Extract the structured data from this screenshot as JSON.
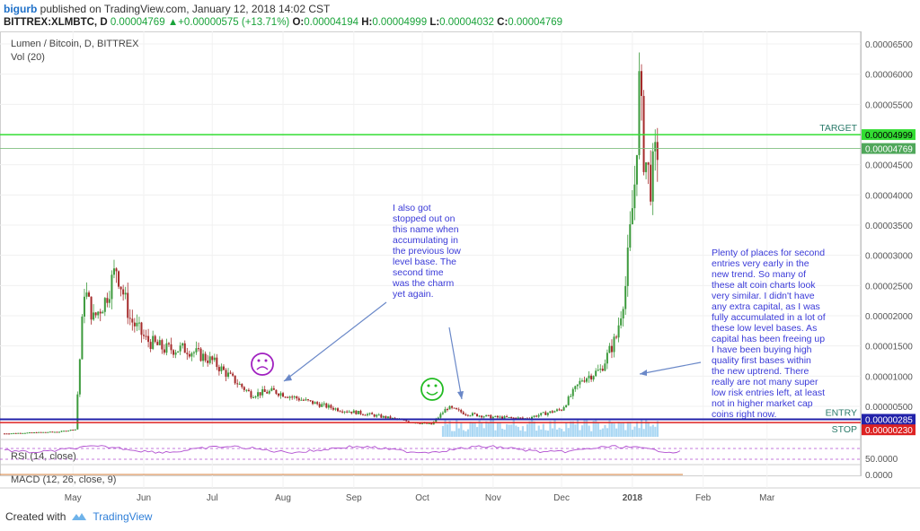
{
  "header": {
    "user": "bigurb",
    "published": "published on TradingView.com, January 12, 2018 14:02 CST",
    "symbol": "BITTREX:XLMBTC, D",
    "last": "0.00004769",
    "change_arrow": "▲",
    "change": "+0.00000575 (+13.71%)",
    "o_label": "O:",
    "o": "0.00004194",
    "h_label": "H:",
    "h": "0.00004999",
    "l_label": "L:",
    "l": "0.00004032",
    "c_label": "C:",
    "c": "0.00004769"
  },
  "footer": {
    "created_with": "Created with",
    "brand": "TradingView",
    "logo_icon": "tradingview-logo-icon"
  },
  "colors": {
    "up": "#3c9a3c",
    "down": "#a52a2a",
    "target": "#33dd33",
    "entry": "#2222aa",
    "stop": "#dd2222",
    "rsi": "#b04dd0",
    "vol": "#88c8f0",
    "note": "#3a3ad8"
  },
  "chart_data": {
    "type": "candlestick",
    "title": "Lumen / Bitcoin, D, BITTREX",
    "volume_label": "Vol (20)",
    "rsi_label": "RSI (14, close)",
    "macd_label": "MACD (12, 26, close, 9)",
    "xlabel": "",
    "ylabel": "",
    "ylim": [
      0.0,
      6.8e-05
    ],
    "y_ticks": [
      "0.00006500",
      "0.00006000",
      "0.00005500",
      "0.00005000",
      "0.00004500",
      "0.00004000",
      "0.00003500",
      "0.00003000",
      "0.00002500",
      "0.00002000",
      "0.00001500",
      "0.00001000",
      "0.00000500"
    ],
    "x_ticks": [
      "May",
      "Jun",
      "Jul",
      "Aug",
      "Sep",
      "Oct",
      "Nov",
      "Dec",
      "2018",
      "Feb",
      "Mar"
    ],
    "levels": [
      {
        "name": "TARGET",
        "value": 4.999e-05,
        "label": "0.00004999"
      },
      {
        "name": "ENTRY",
        "value": 2.85e-06,
        "label": "0.00000285"
      },
      {
        "name": "STOP",
        "value": 2.3e-06,
        "label": "0.00000230"
      }
    ],
    "last_price_label": "0.00004769",
    "rsi_tick": "50.0000",
    "macd_tick": "0.0000",
    "close_path": [
      [
        "2017-04-01",
        5e-07
      ],
      [
        "2017-04-25",
        8e-07
      ],
      [
        "2017-05-02",
        1.2e-06
      ],
      [
        "2017-05-06",
        2.45e-05
      ],
      [
        "2017-05-10",
        1.95e-05
      ],
      [
        "2017-05-15",
        2.25e-05
      ],
      [
        "2017-05-20",
        2.8e-05
      ],
      [
        "2017-05-26",
        1.95e-05
      ],
      [
        "2017-06-02",
        1.6e-05
      ],
      [
        "2017-06-10",
        1.45e-05
      ],
      [
        "2017-06-20",
        1.45e-05
      ],
      [
        "2017-07-01",
        1.25e-05
      ],
      [
        "2017-07-10",
        9.5e-06
      ],
      [
        "2017-07-18",
        7e-06
      ],
      [
        "2017-07-28",
        7.5e-06
      ],
      [
        "2017-08-10",
        6e-06
      ],
      [
        "2017-08-25",
        4.5e-06
      ],
      [
        "2017-09-10",
        3.5e-06
      ],
      [
        "2017-09-25",
        2.5e-06
      ],
      [
        "2017-10-05",
        2e-06
      ],
      [
        "2017-10-12",
        4.8e-06
      ],
      [
        "2017-10-20",
        3.8e-06
      ],
      [
        "2017-11-01",
        3.2e-06
      ],
      [
        "2017-11-15",
        3e-06
      ],
      [
        "2017-12-01",
        4.5e-06
      ],
      [
        "2017-12-10",
        9.5e-06
      ],
      [
        "2017-12-18",
        1.1e-05
      ],
      [
        "2017-12-25",
        1.65e-05
      ],
      [
        "2017-12-29",
        2.5e-05
      ],
      [
        "2018-01-02",
        4.2e-05
      ],
      [
        "2018-01-04",
        5.8e-05
      ],
      [
        "2018-01-06",
        4.7e-05
      ],
      [
        "2018-01-09",
        4.194e-05
      ],
      [
        "2018-01-12",
        4.769e-05
      ]
    ]
  },
  "annotations": {
    "note1": [
      "I also got",
      "stopped out on",
      "this name when",
      "accumulating in",
      "the previous low",
      "level base.  The",
      "second time",
      "was the charm",
      "yet again."
    ],
    "note2": [
      "Plenty of places for second",
      "entries very early in the",
      "new trend.  So many of",
      "these alt coin charts look",
      "very similar.  I didn't have",
      "any extra capital, as I was",
      "fully accumulated in a lot of",
      "these low level bases.  As",
      "capital has been freeing up",
      "I have been buying high",
      "quality first bases within",
      "the new uptrend.  There",
      "really are not many super",
      "low risk entries left, at least",
      "not in higher market cap",
      "coins right now."
    ],
    "sad_icon": "sad-face-icon",
    "happy_icon": "happy-face-icon"
  }
}
